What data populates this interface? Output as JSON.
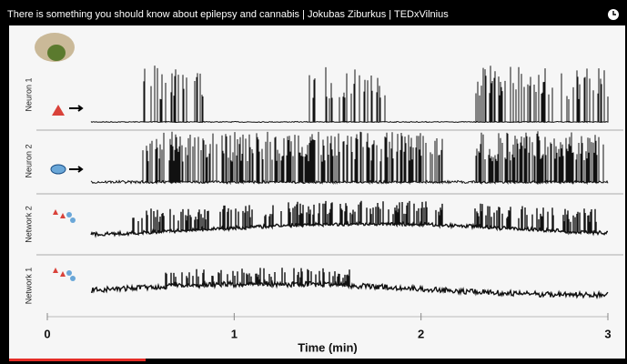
{
  "video": {
    "title": "There is something you should know about epilepsy and cannabis | Jokubas Ziburkus | TEDxVilnius"
  },
  "chart": {
    "rows": [
      "Neuron 1",
      "Neuron 2",
      "Network 2",
      "Network 1"
    ],
    "x_axis": {
      "label": "Time (min)",
      "ticks": [
        0,
        1,
        2,
        3
      ]
    }
  }
}
